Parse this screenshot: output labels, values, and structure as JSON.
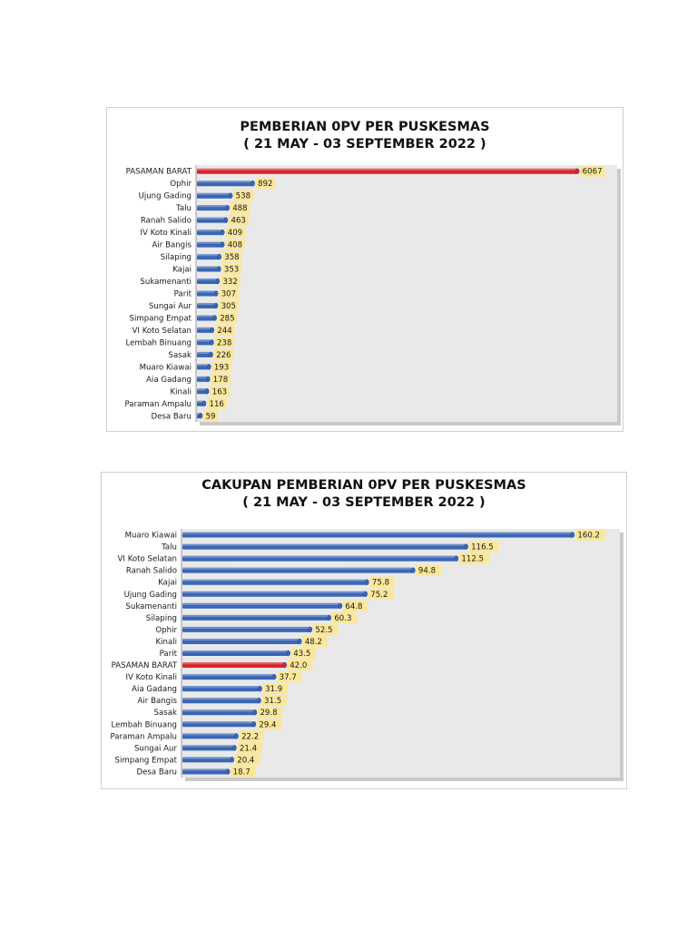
{
  "chart_data": [
    {
      "type": "bar",
      "orientation": "horizontal",
      "title_line1": "PEMBERIAN   0PV PER PUSKESMAS",
      "title_line2": "( 21 MAY - 03 SEPTEMBER 2022 )",
      "categories": [
        "PASAMAN BARAT",
        "Ophir",
        "Ujung Gading",
        "Talu",
        "Ranah Salido",
        "IV Koto Kinali",
        "Air Bangis",
        "Silaping",
        "Kajai",
        "Sukamenanti",
        "Parit",
        "Sungai Aur",
        "Simpang Empat",
        "VI Koto Selatan",
        "Lembah Binuang",
        "Sasak",
        "Muaro Kiawai",
        "Aia Gadang",
        "Kinali",
        "Paraman Ampalu",
        "Desa Baru"
      ],
      "values": [
        6067,
        892,
        538,
        488,
        463,
        409,
        408,
        358,
        353,
        332,
        307,
        305,
        285,
        244,
        238,
        226,
        193,
        178,
        163,
        116,
        59
      ],
      "value_labels": [
        "6067",
        "892",
        "538",
        "488",
        "463",
        "409",
        "408",
        "358",
        "353",
        "332",
        "307",
        "305",
        "285",
        "244",
        "238",
        "226",
        "193",
        "178",
        "163",
        "116",
        "59"
      ],
      "highlight": "PASAMAN BARAT",
      "xlim": [
        0,
        6600
      ],
      "grid": false,
      "legend": "none",
      "colors": {
        "bar": "#3a66b5",
        "highlight": "#d9262b",
        "label_bg": "#fbe79a",
        "plot_bg": "#e9e9e9"
      }
    },
    {
      "type": "bar",
      "orientation": "horizontal",
      "title_line1": "CAKUPAN PEMBERIAN   0PV PER PUSKESMAS",
      "title_line2": "( 21 MAY - 03 SEPTEMBER 2022 )",
      "categories": [
        "Muaro Kiawai",
        "Talu",
        "VI Koto Selatan",
        "Ranah Salido",
        "Kajai",
        "Ujung Gading",
        "Sukamenanti",
        "Silaping",
        "Ophir",
        "Kinali",
        "Parit",
        "PASAMAN BARAT",
        "IV Koto Kinali",
        "Aia Gadang",
        "Air Bangis",
        "Sasak",
        "Lembah Binuang",
        "Paraman Ampalu",
        "Sungai Aur",
        "Simpang Empat",
        "Desa Baru"
      ],
      "values": [
        160.2,
        116.5,
        112.5,
        94.8,
        75.8,
        75.2,
        64.8,
        60.3,
        52.5,
        48.2,
        43.5,
        42.0,
        37.7,
        31.9,
        31.5,
        29.8,
        29.4,
        22.2,
        21.4,
        20.4,
        18.7
      ],
      "value_labels": [
        "160.2",
        "116.5",
        "112.5",
        "94.8",
        "75.8",
        "75.2",
        "64.8",
        "60.3",
        "52.5",
        "48.2",
        "43.5",
        "42.0",
        "37.7",
        "31.9",
        "31.5",
        "29.8",
        "29.4",
        "22.2",
        "21.4",
        "20.4",
        "18.7"
      ],
      "highlight": "PASAMAN BARAT",
      "xlim": [
        0,
        177
      ],
      "grid": false,
      "legend": "none",
      "colors": {
        "bar": "#3a66b5",
        "highlight": "#d9262b",
        "label_bg": "#fbe79a",
        "plot_bg": "#e9e9e9"
      }
    }
  ]
}
